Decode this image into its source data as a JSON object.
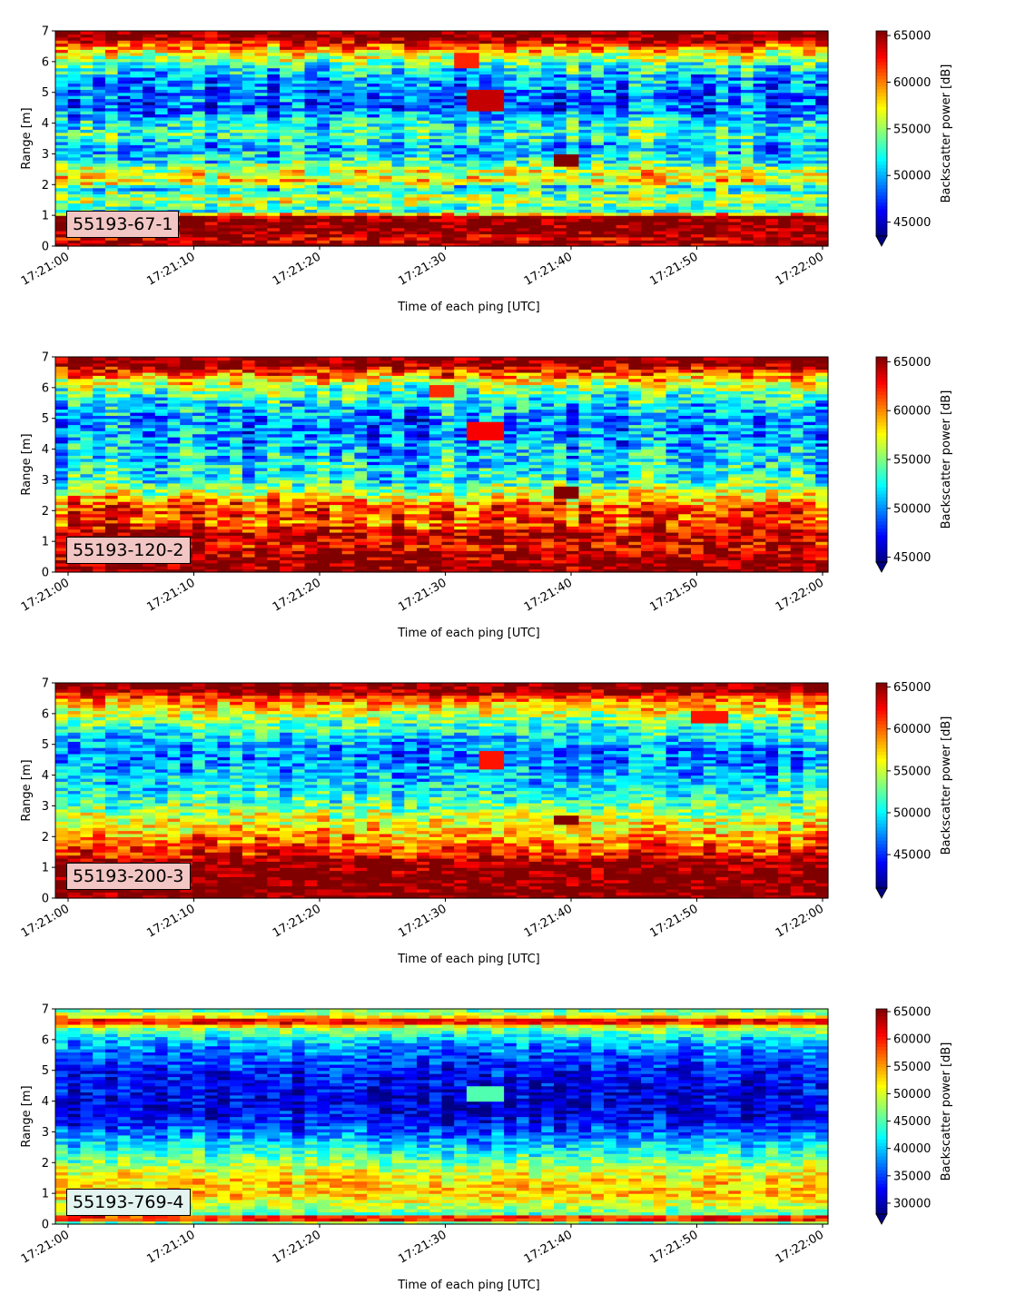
{
  "figure": {
    "xlabel": "Time of each ping [UTC]",
    "ylabel": "Range [m]",
    "cbar_label": "Backscatter power [dB]",
    "colormap": "jet"
  },
  "chart_data": [
    {
      "type": "heatmap",
      "label": "55193-67-1",
      "label_bg": "#f2c6c4",
      "x_ticks": [
        "17:21:00",
        "17:21:10",
        "17:21:20",
        "17:21:30",
        "17:21:40",
        "17:21:50",
        "17:22:00"
      ],
      "y_ticks": [
        "0",
        "1",
        "2",
        "3",
        "4",
        "5",
        "6",
        "7"
      ],
      "ylim": [
        0,
        7
      ],
      "cbar_ticks": [
        "45000",
        "50000",
        "55000",
        "60000",
        "65000"
      ],
      "cbar_range": [
        43500,
        65500
      ],
      "profile": [
        [
          0.0,
          66000
        ],
        [
          0.25,
          64000
        ],
        [
          0.5,
          66000
        ],
        [
          1.0,
          65500
        ],
        [
          1.1,
          52000
        ],
        [
          1.3,
          54000
        ],
        [
          1.6,
          56000
        ],
        [
          1.9,
          51000
        ],
        [
          2.1,
          58000
        ],
        [
          2.5,
          56000
        ],
        [
          2.8,
          52000
        ],
        [
          3.2,
          50000
        ],
        [
          3.6,
          53000
        ],
        [
          4.0,
          52000
        ],
        [
          4.5,
          48000
        ],
        [
          5.0,
          49000
        ],
        [
          5.5,
          50000
        ],
        [
          6.0,
          54000
        ],
        [
          6.5,
          60000
        ],
        [
          6.8,
          66000
        ],
        [
          7.0,
          66000
        ]
      ],
      "noise": 4500,
      "features": [
        [
          33.5,
          4.75,
          0.35,
          64000
        ],
        [
          40,
          2.8,
          0.2,
          66000
        ],
        [
          32,
          6.1,
          0.25,
          62000
        ]
      ]
    },
    {
      "type": "heatmap",
      "label": "55193-120-2",
      "label_bg": "#f2c6c4",
      "x_ticks": [
        "17:21:00",
        "17:21:10",
        "17:21:20",
        "17:21:30",
        "17:21:40",
        "17:21:50",
        "17:22:00"
      ],
      "y_ticks": [
        "0",
        "1",
        "2",
        "3",
        "4",
        "5",
        "6",
        "7"
      ],
      "ylim": [
        0,
        7
      ],
      "cbar_ticks": [
        "45000",
        "50000",
        "55000",
        "60000",
        "65000"
      ],
      "cbar_range": [
        44500,
        65500
      ],
      "profile": [
        [
          0.0,
          66000
        ],
        [
          0.5,
          65000
        ],
        [
          0.9,
          63000
        ],
        [
          1.2,
          65000
        ],
        [
          1.6,
          61000
        ],
        [
          2.0,
          62000
        ],
        [
          2.3,
          60000
        ],
        [
          2.6,
          56000
        ],
        [
          3.0,
          53000
        ],
        [
          3.5,
          52000
        ],
        [
          4.0,
          51000
        ],
        [
          4.5,
          50000
        ],
        [
          5.0,
          50000
        ],
        [
          5.5,
          52000
        ],
        [
          6.0,
          55000
        ],
        [
          6.5,
          61000
        ],
        [
          6.8,
          66000
        ],
        [
          7.0,
          66000
        ]
      ],
      "noise": 4500,
      "features": [
        [
          33.5,
          4.6,
          0.3,
          63000
        ],
        [
          40,
          2.6,
          0.2,
          66000
        ],
        [
          30,
          5.9,
          0.2,
          62000
        ]
      ]
    },
    {
      "type": "heatmap",
      "label": "55193-200-3",
      "label_bg": "#f2c6c4",
      "x_ticks": [
        "17:21:00",
        "17:21:10",
        "17:21:20",
        "17:21:30",
        "17:21:40",
        "17:21:50",
        "17:22:00"
      ],
      "y_ticks": [
        "0",
        "1",
        "2",
        "3",
        "4",
        "5",
        "6",
        "7"
      ],
      "ylim": [
        0,
        7
      ],
      "cbar_ticks": [
        "45000",
        "50000",
        "55000",
        "60000",
        "65000"
      ],
      "cbar_range": [
        41000,
        65500
      ],
      "profile": [
        [
          0.0,
          66000
        ],
        [
          0.6,
          66000
        ],
        [
          1.2,
          65500
        ],
        [
          1.4,
          62000
        ],
        [
          1.8,
          60000
        ],
        [
          2.1,
          58000
        ],
        [
          2.5,
          56000
        ],
        [
          3.0,
          53000
        ],
        [
          3.5,
          50000
        ],
        [
          4.0,
          49000
        ],
        [
          4.5,
          47000
        ],
        [
          5.0,
          48000
        ],
        [
          5.5,
          51000
        ],
        [
          6.0,
          55000
        ],
        [
          6.5,
          60000
        ],
        [
          6.8,
          66000
        ],
        [
          7.0,
          66000
        ]
      ],
      "noise": 4500,
      "features": [
        [
          34,
          4.5,
          0.3,
          62000
        ],
        [
          40,
          2.5,
          0.15,
          66000
        ],
        [
          51,
          5.9,
          0.2,
          62000
        ]
      ]
    },
    {
      "type": "heatmap",
      "label": "55193-769-4",
      "label_bg": "#e4f4f0",
      "x_ticks": [
        "17:21:00",
        "17:21:10",
        "17:21:20",
        "17:21:30",
        "17:21:40",
        "17:21:50",
        "17:22:00"
      ],
      "y_ticks": [
        "0",
        "1",
        "2",
        "3",
        "4",
        "5",
        "6",
        "7"
      ],
      "ylim": [
        0,
        7
      ],
      "cbar_ticks": [
        "30000",
        "35000",
        "40000",
        "45000",
        "50000",
        "55000",
        "60000",
        "65000"
      ],
      "cbar_range": [
        28000,
        65500
      ],
      "profile": [
        [
          0.0,
          40000
        ],
        [
          0.2,
          66000
        ],
        [
          0.35,
          45000
        ],
        [
          0.7,
          50000
        ],
        [
          1.0,
          54000
        ],
        [
          1.5,
          52000
        ],
        [
          2.0,
          47000
        ],
        [
          2.5,
          42000
        ],
        [
          3.0,
          36000
        ],
        [
          3.5,
          32000
        ],
        [
          4.0,
          31000
        ],
        [
          4.5,
          32000
        ],
        [
          5.0,
          33000
        ],
        [
          5.5,
          36000
        ],
        [
          6.0,
          40000
        ],
        [
          6.4,
          48000
        ],
        [
          6.6,
          64000
        ],
        [
          6.8,
          50000
        ],
        [
          7.0,
          44000
        ]
      ],
      "noise": 5000,
      "features": [
        [
          33.5,
          4.3,
          0.25,
          45000
        ]
      ]
    }
  ]
}
